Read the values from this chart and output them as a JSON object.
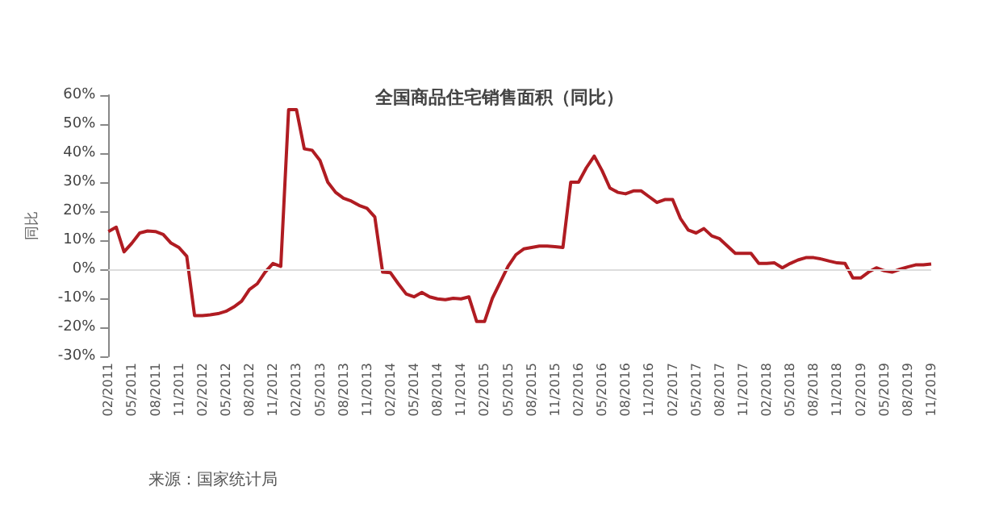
{
  "chart_data": {
    "type": "line",
    "title": "全国商品住宅销售面积（同比）",
    "ylabel": "同比",
    "annotations": [
      "来源：国家统计局"
    ],
    "categories": [
      "02/2011",
      null,
      null,
      "05/2011",
      null,
      null,
      "08/2011",
      null,
      null,
      "11/2011",
      null,
      null,
      "02/2012",
      null,
      null,
      "05/2012",
      null,
      null,
      "08/2012",
      null,
      null,
      "11/2012",
      null,
      null,
      "02/2013",
      null,
      null,
      "05/2013",
      null,
      null,
      "08/2013",
      null,
      null,
      "11/2013",
      null,
      null,
      "02/2014",
      null,
      null,
      "05/2014",
      null,
      null,
      "08/2014",
      null,
      null,
      "11/2014",
      null,
      null,
      "02/2015",
      null,
      null,
      "05/2015",
      null,
      null,
      "08/2015",
      null,
      null,
      "11/2015",
      null,
      null,
      "02/2016",
      null,
      null,
      "05/2016",
      null,
      null,
      "08/2016",
      null,
      null,
      "11/2016",
      null,
      null,
      "02/2017",
      null,
      null,
      "05/2017",
      null,
      null,
      "08/2017",
      null,
      null,
      "11/2017",
      null,
      null,
      "02/2018",
      null,
      null,
      "05/2018",
      null,
      null,
      "08/2018",
      null,
      null,
      "11/2018",
      null,
      null,
      "02/2019",
      null,
      null,
      "05/2019",
      null,
      null,
      "08/2019",
      null,
      null,
      "11/2019"
    ],
    "series": [
      {
        "color": "#b01c22",
        "values": [
          13,
          14.5,
          6,
          9,
          12.5,
          13.2,
          13,
          12,
          9,
          7.5,
          4.5,
          -16,
          -16,
          -15.7,
          -15.3,
          -14.5,
          -13,
          -11,
          -7,
          -5,
          -1,
          2,
          1,
          55,
          55,
          41.5,
          41,
          37.5,
          30,
          26.5,
          24.5,
          23.5,
          22,
          21,
          18,
          -1,
          -1.2,
          -5,
          -8.5,
          -9.5,
          -8,
          -9.5,
          -10.2,
          -10.5,
          -10,
          -10.2,
          -9.5,
          -18,
          -18,
          -10,
          -4.5,
          1,
          5,
          7,
          7.5,
          8,
          8,
          7.8,
          7.5,
          30,
          30,
          35,
          39,
          34,
          28,
          26.5,
          26,
          27,
          27,
          25,
          23,
          24,
          24,
          17.5,
          13.5,
          12.5,
          14,
          11.5,
          10.5,
          8,
          5.5,
          5.5,
          5.5,
          2,
          2,
          2.2,
          0.5,
          2,
          3.2,
          4,
          4,
          3.5,
          2.8,
          2.2,
          2,
          -3,
          -3,
          -1,
          0.5,
          -0.5,
          -1,
          0,
          0.8,
          1.5,
          1.5,
          1.8
        ]
      }
    ],
    "ylim": [
      -30,
      60
    ],
    "yticks": [
      {
        "value": -30,
        "label": "-30%"
      },
      {
        "value": -20,
        "label": "-20%"
      },
      {
        "value": -10,
        "label": "-10%"
      },
      {
        "value": 0,
        "label": "0%"
      },
      {
        "value": 10,
        "label": "10%"
      },
      {
        "value": 20,
        "label": "20%"
      },
      {
        "value": 30,
        "label": "30%"
      },
      {
        "value": 40,
        "label": "40%"
      },
      {
        "value": 50,
        "label": "50%"
      },
      {
        "value": 60,
        "label": "60%"
      }
    ],
    "ref_lines": [
      {
        "axis": "y",
        "value": 0,
        "color": "#dddddd"
      }
    ],
    "grid": false,
    "marker": "none",
    "line_style": "solid"
  }
}
